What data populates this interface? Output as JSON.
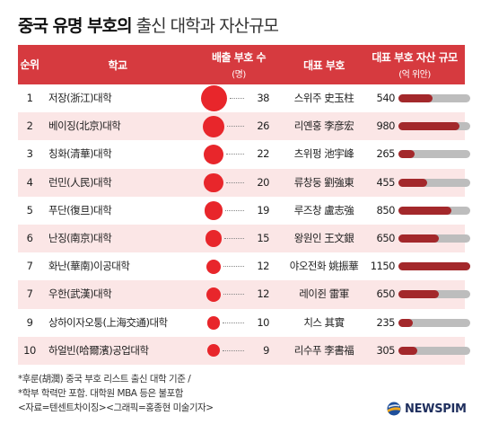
{
  "title": {
    "bold": "중국 유명 부호의",
    "regular": " 출신 대학과 자산규모"
  },
  "header": {
    "rank": "순위",
    "school": "학교",
    "count": "배출 부호 수",
    "count_unit": "(명)",
    "rep": "대표 부호",
    "asset": "대표 부호 자산 규모",
    "asset_unit": "(억 위안)"
  },
  "chart_data": {
    "type": "table",
    "columns": [
      "순위",
      "학교",
      "배출 부호 수 (명)",
      "대표 부호",
      "대표 부호 자산 규모 (억 위안)"
    ],
    "asset_scale_max": 1150,
    "rows": [
      {
        "rank": "1",
        "school": "저장(浙江)대학",
        "count": 38,
        "rep": "스위주  史玉柱",
        "asset": 540
      },
      {
        "rank": "2",
        "school": "베이징(北京)대학",
        "count": 26,
        "rep": "리옌훙  李彦宏",
        "asset": 980
      },
      {
        "rank": "3",
        "school": "칭화(清華)대학",
        "count": 22,
        "rep": "츠위펑  池宇峰",
        "asset": 265
      },
      {
        "rank": "4",
        "school": "런민(人民)대학",
        "count": 20,
        "rep": "류창둥  劉強東",
        "asset": 455
      },
      {
        "rank": "5",
        "school": "푸단(復旦)대학",
        "count": 19,
        "rep": "루즈창  盧志強",
        "asset": 850
      },
      {
        "rank": "6",
        "school": "난징(南京)대학",
        "count": 15,
        "rep": "왕원인  王文銀",
        "asset": 650
      },
      {
        "rank": "7",
        "school": "화난(華南)이공대학",
        "count": 12,
        "rep": "야오전화  姚振華",
        "asset": 1150
      },
      {
        "rank": "7",
        "school": "우한(武漢)대학",
        "count": 12,
        "rep": "레이쥔  雷軍",
        "asset": 650
      },
      {
        "rank": "9",
        "school": "상하이자오퉁(上海交通)대학",
        "count": 10,
        "rep": "치스  其實",
        "asset": 235
      },
      {
        "rank": "10",
        "school": "하얼빈(哈爾濱)공업대학",
        "count": 9,
        "rep": "리수푸  李書福",
        "asset": 305
      }
    ]
  },
  "notes": [
    "*후룬(胡潤) 중국 부호 리스트 출신 대학 기준 /",
    "*학부 학력만 포함. 대학원 MBA 등은 불포함",
    "<자료=텐센트차이징><그래픽=홍종현 미술기자>"
  ],
  "brand": {
    "name": "NEWSPIM",
    "logo_icon": "globe-icon"
  },
  "colors": {
    "header_bg": "#d63a3f",
    "dot": "#e8262b",
    "bar_fill": "#a3282b",
    "bar_track": "#bdbdbd",
    "row_alt": "#fbe6e6"
  }
}
